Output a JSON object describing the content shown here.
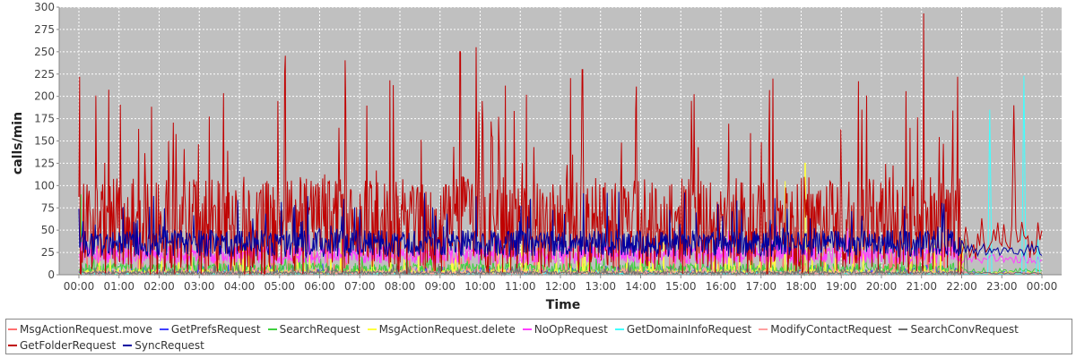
{
  "chart_data": {
    "type": "line",
    "title": "",
    "xlabel": "Time",
    "ylabel": "calls/min",
    "ylim": [
      0,
      300
    ],
    "yticks": [
      0,
      25,
      50,
      75,
      100,
      125,
      150,
      175,
      200,
      225,
      250,
      275,
      300
    ],
    "xlim_hours": [
      0,
      24
    ],
    "xticks": [
      "00:00",
      "01:00",
      "02:00",
      "03:00",
      "04:00",
      "05:00",
      "06:00",
      "07:00",
      "08:00",
      "09:00",
      "10:00",
      "11:00",
      "12:00",
      "13:00",
      "14:00",
      "15:00",
      "16:00",
      "17:00",
      "18:00",
      "19:00",
      "20:00",
      "21:00",
      "22:00",
      "23:00",
      "00:00"
    ],
    "grid": true,
    "legend_position": "bottom",
    "plot_background": "#c0c0c0",
    "series": [
      {
        "name": "MsgActionRequest.move",
        "color": "#ff7070",
        "level": 2,
        "spread": 3,
        "peak": 35,
        "peaks": [
          {
            "x": 9.1,
            "y": 28
          },
          {
            "x": 8.8,
            "y": 15
          }
        ]
      },
      {
        "name": "GetPrefsRequest",
        "color": "#4040ff",
        "level": 3,
        "spread": 2,
        "peak": 12,
        "peaks": []
      },
      {
        "name": "SearchRequest",
        "color": "#40d040",
        "level": 6,
        "spread": 7,
        "peak": 20,
        "peaks": [
          {
            "x": 0.05,
            "y": 90
          }
        ]
      },
      {
        "name": "MsgActionRequest.delete",
        "color": "#ffff40",
        "level": 2,
        "spread": 4,
        "peak": 40,
        "peaks": [
          {
            "x": 17.6,
            "y": 105
          },
          {
            "x": 18.1,
            "y": 125
          },
          {
            "x": 22.0,
            "y": 40
          }
        ]
      },
      {
        "name": "NoOpRequest",
        "color": "#ff40ff",
        "level": 22,
        "spread": 10,
        "peak": 45,
        "peaks": [
          {
            "x": 0.1,
            "y": 60
          },
          {
            "x": 17.4,
            "y": 55
          }
        ]
      },
      {
        "name": "GetDomainInfoRequest",
        "color": "#40ffff",
        "level": 1,
        "spread": 1,
        "peak": 5,
        "peaks": [
          {
            "x": 22.7,
            "y": 185
          },
          {
            "x": 23.55,
            "y": 223
          },
          {
            "x": 23.9,
            "y": 40
          }
        ]
      },
      {
        "name": "ModifyContactRequest",
        "color": "#ffa0a0",
        "level": 2,
        "spread": 2,
        "peak": 10,
        "peaks": []
      },
      {
        "name": "SearchConvRequest",
        "color": "#707070",
        "level": 2,
        "spread": 2,
        "peak": 12,
        "peaks": [
          {
            "x": 22.1,
            "y": 40
          }
        ]
      },
      {
        "name": "GetFolderRequest",
        "color": "#c00000",
        "level": 55,
        "spread": 55,
        "peak": 200,
        "peaks": [
          {
            "x": 0.02,
            "y": 222
          },
          {
            "x": 7.75,
            "y": 218
          },
          {
            "x": 9.5,
            "y": 250
          },
          {
            "x": 9.9,
            "y": 255
          },
          {
            "x": 12.55,
            "y": 230
          },
          {
            "x": 17.3,
            "y": 220
          },
          {
            "x": 21.05,
            "y": 293
          },
          {
            "x": 21.9,
            "y": 222
          },
          {
            "x": 23.3,
            "y": 190
          }
        ]
      },
      {
        "name": "SyncRequest",
        "color": "#0000a0",
        "level": 35,
        "spread": 15,
        "peak": 85,
        "peaks": [
          {
            "x": 6.6,
            "y": 85
          },
          {
            "x": 9.9,
            "y": 88
          },
          {
            "x": 15.1,
            "y": 92
          }
        ]
      }
    ]
  }
}
